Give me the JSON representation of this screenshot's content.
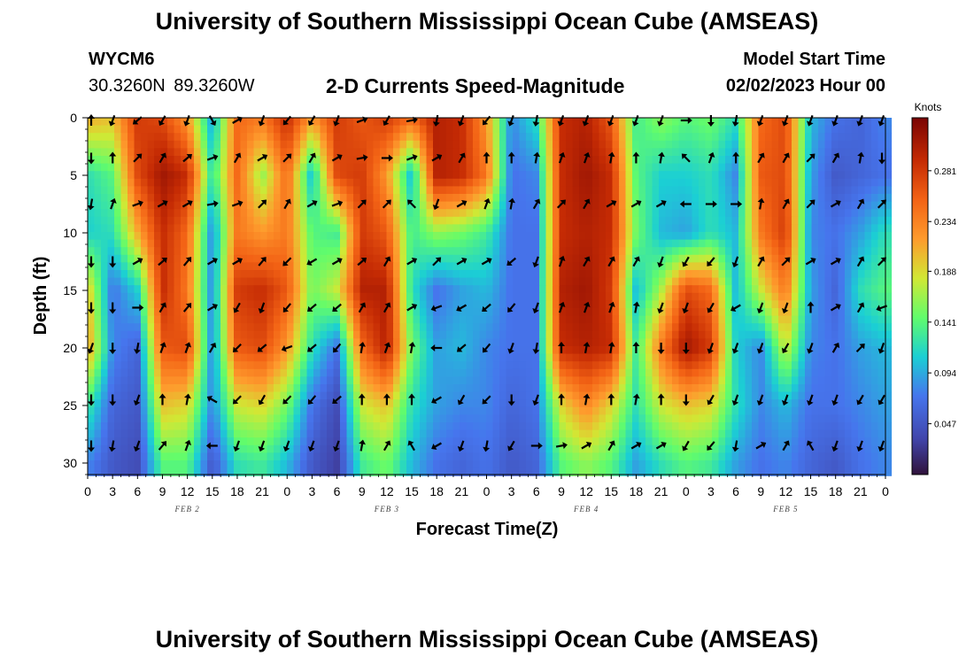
{
  "header": {
    "title": "University of Southern Mississippi Ocean Cube (AMSEAS)",
    "station": "WYCM6",
    "coords": "30.3260N  89.3260W",
    "product": "2-D Currents Speed-Magnitude",
    "model_label": "Model Start Time",
    "model_date": "02/02/2023 Hour 00"
  },
  "footer": {
    "title": "University of Southern Mississippi Ocean Cube (AMSEAS)"
  },
  "chart_data": {
    "type": "heatmap",
    "title": "2-D Currents Speed-Magnitude",
    "xlabel": "Forecast Time(Z)",
    "ylabel": "Depth (ft)",
    "x_ticks": [
      "0",
      "3",
      "6",
      "9",
      "12",
      "15",
      "18",
      "21",
      "0",
      "3",
      "6",
      "9",
      "12",
      "15",
      "18",
      "21",
      "0",
      "3",
      "6",
      "9",
      "12",
      "15",
      "18",
      "21",
      "0",
      "3",
      "6",
      "9",
      "12",
      "15",
      "18",
      "21",
      "0"
    ],
    "x_range_hours": [
      0,
      96
    ],
    "day_labels": [
      {
        "label": "FEB 2",
        "hour": 12
      },
      {
        "label": "FEB 3",
        "hour": 36
      },
      {
        "label": "FEB 4",
        "hour": 60
      },
      {
        "label": "FEB 5",
        "hour": 84
      }
    ],
    "y_ticks": [
      0,
      5,
      10,
      15,
      20,
      25,
      30
    ],
    "ylim": [
      0,
      31
    ],
    "colorbar": {
      "unit": "Knots",
      "range": [
        0.0,
        0.33
      ],
      "ticks": [
        "0.281",
        "0.234",
        "0.188",
        "0.141",
        "0.094",
        "0.047"
      ],
      "tick_values": [
        0.281,
        0.234,
        0.188,
        0.141,
        0.094,
        0.047
      ]
    },
    "arrow_depths_ft": [
      0,
      3.5,
      7.5,
      12.5,
      16.5,
      20,
      24.5,
      28.5
    ],
    "time_hours": [
      0,
      3,
      6,
      9,
      12,
      15,
      18,
      21,
      24,
      27,
      30,
      33,
      36,
      39,
      42,
      45,
      48,
      51,
      54,
      57,
      60,
      63,
      66,
      69,
      72,
      75,
      78,
      81,
      84,
      87,
      90,
      93,
      96
    ],
    "speed_depths_ft": [
      0,
      5,
      10,
      15,
      20,
      25,
      30
    ],
    "speed_knots": [
      [
        0.21,
        0.2,
        0.28,
        0.27,
        0.22,
        0.09,
        0.25,
        0.24,
        0.29,
        0.22,
        0.28,
        0.26,
        0.28,
        0.25,
        0.3,
        0.29,
        0.22,
        0.08,
        0.12,
        0.29,
        0.3,
        0.26,
        0.13,
        0.16,
        0.14,
        0.15,
        0.12,
        0.25,
        0.27,
        0.1,
        0.07,
        0.06,
        0.08
      ],
      [
        0.12,
        0.14,
        0.27,
        0.31,
        0.29,
        0.12,
        0.25,
        0.16,
        0.25,
        0.1,
        0.27,
        0.28,
        0.22,
        0.1,
        0.3,
        0.29,
        0.24,
        0.07,
        0.08,
        0.29,
        0.31,
        0.29,
        0.14,
        0.11,
        0.11,
        0.12,
        0.08,
        0.26,
        0.27,
        0.09,
        0.05,
        0.06,
        0.07
      ],
      [
        0.11,
        0.12,
        0.21,
        0.29,
        0.25,
        0.08,
        0.24,
        0.22,
        0.24,
        0.14,
        0.13,
        0.28,
        0.26,
        0.13,
        0.16,
        0.15,
        0.13,
        0.07,
        0.07,
        0.29,
        0.3,
        0.29,
        0.15,
        0.1,
        0.09,
        0.12,
        0.1,
        0.24,
        0.28,
        0.08,
        0.07,
        0.09,
        0.12
      ],
      [
        0.2,
        0.07,
        0.11,
        0.29,
        0.24,
        0.08,
        0.28,
        0.29,
        0.26,
        0.15,
        0.18,
        0.3,
        0.3,
        0.12,
        0.07,
        0.09,
        0.1,
        0.07,
        0.07,
        0.3,
        0.31,
        0.28,
        0.1,
        0.17,
        0.27,
        0.25,
        0.1,
        0.18,
        0.24,
        0.09,
        0.06,
        0.12,
        0.14
      ],
      [
        0.22,
        0.08,
        0.06,
        0.26,
        0.27,
        0.08,
        0.26,
        0.27,
        0.22,
        0.12,
        0.07,
        0.25,
        0.3,
        0.15,
        0.09,
        0.1,
        0.08,
        0.07,
        0.07,
        0.29,
        0.3,
        0.29,
        0.13,
        0.24,
        0.31,
        0.28,
        0.11,
        0.08,
        0.18,
        0.08,
        0.07,
        0.09,
        0.1
      ],
      [
        0.13,
        0.06,
        0.05,
        0.2,
        0.19,
        0.08,
        0.18,
        0.19,
        0.15,
        0.07,
        0.04,
        0.18,
        0.2,
        0.12,
        0.09,
        0.08,
        0.08,
        0.06,
        0.07,
        0.19,
        0.23,
        0.19,
        0.12,
        0.18,
        0.2,
        0.19,
        0.12,
        0.08,
        0.1,
        0.07,
        0.07,
        0.08,
        0.09
      ],
      [
        0.08,
        0.05,
        0.04,
        0.14,
        0.14,
        0.05,
        0.12,
        0.13,
        0.1,
        0.05,
        0.03,
        0.13,
        0.15,
        0.1,
        0.07,
        0.06,
        0.07,
        0.05,
        0.06,
        0.14,
        0.16,
        0.14,
        0.09,
        0.12,
        0.14,
        0.13,
        0.09,
        0.07,
        0.08,
        0.06,
        0.05,
        0.07,
        0.08
      ]
    ],
    "arrow_angles_deg": [
      [
        0,
        200,
        230,
        210,
        200,
        150,
        60,
        200,
        220,
        210,
        200,
        70,
        210,
        80,
        190,
        200,
        220,
        200,
        190,
        200,
        200,
        200,
        200,
        200,
        90,
        180,
        190,
        200,
        200,
        200,
        200,
        200,
        200
      ],
      [
        180,
        0,
        45,
        30,
        50,
        70,
        30,
        60,
        45,
        30,
        60,
        80,
        90,
        70,
        60,
        30,
        0,
        0,
        10,
        20,
        20,
        10,
        0,
        10,
        315,
        20,
        0,
        30,
        30,
        45,
        30,
        10,
        180
      ],
      [
        190,
        20,
        70,
        60,
        60,
        80,
        70,
        45,
        30,
        60,
        70,
        45,
        45,
        315,
        200,
        60,
        20,
        10,
        30,
        45,
        30,
        60,
        60,
        60,
        270,
        90,
        90,
        10,
        30,
        45,
        60,
        30,
        45
      ],
      [
        180,
        180,
        60,
        50,
        40,
        60,
        60,
        40,
        225,
        240,
        60,
        50,
        30,
        60,
        45,
        60,
        60,
        230,
        200,
        20,
        30,
        30,
        30,
        200,
        210,
        220,
        200,
        30,
        45,
        60,
        60,
        30,
        45
      ],
      [
        180,
        180,
        90,
        30,
        40,
        60,
        210,
        200,
        220,
        230,
        230,
        30,
        30,
        60,
        250,
        240,
        230,
        220,
        200,
        20,
        20,
        20,
        10,
        200,
        200,
        210,
        240,
        200,
        200,
        0,
        60,
        30,
        250
      ],
      [
        200,
        180,
        190,
        20,
        20,
        30,
        225,
        230,
        250,
        230,
        220,
        10,
        20,
        10,
        270,
        230,
        220,
        200,
        190,
        0,
        10,
        10,
        0,
        180,
        180,
        200,
        200,
        200,
        210,
        200,
        30,
        45,
        200
      ],
      [
        180,
        180,
        200,
        0,
        10,
        300,
        225,
        210,
        225,
        220,
        230,
        0,
        0,
        0,
        240,
        210,
        225,
        180,
        200,
        0,
        10,
        0,
        10,
        0,
        180,
        210,
        200,
        200,
        200,
        200,
        200,
        210,
        210
      ],
      [
        180,
        190,
        200,
        40,
        20,
        270,
        200,
        200,
        200,
        200,
        200,
        10,
        30,
        330,
        240,
        200,
        190,
        210,
        90,
        80,
        60,
        30,
        60,
        60,
        210,
        220,
        190,
        60,
        30,
        330,
        200,
        200,
        200
      ]
    ]
  }
}
